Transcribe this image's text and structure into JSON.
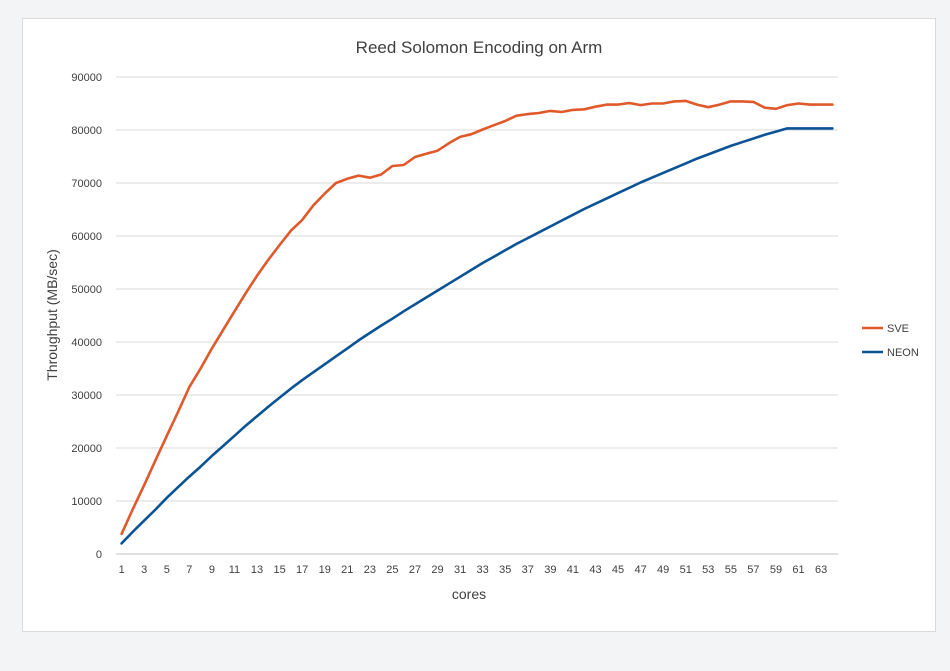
{
  "chart_data": {
    "type": "line",
    "title": "Reed Solomon Encoding on Arm",
    "xlabel": "cores",
    "ylabel": "Throughput (MB/sec)",
    "ylim": [
      0,
      90000
    ],
    "yticks": [
      "0",
      "10000",
      "20000",
      "30000",
      "40000",
      "50000",
      "60000",
      "70000",
      "80000",
      "90000"
    ],
    "xticks": [
      "1",
      "3",
      "5",
      "7",
      "9",
      "11",
      "13",
      "15",
      "17",
      "19",
      "21",
      "23",
      "25",
      "27",
      "29",
      "31",
      "33",
      "35",
      "37",
      "39",
      "41",
      "43",
      "45",
      "47",
      "49",
      "51",
      "53",
      "55",
      "57",
      "59",
      "61",
      "63"
    ],
    "grid": "horizontal",
    "legend_position": "right",
    "x": [
      1,
      2,
      3,
      4,
      5,
      6,
      7,
      8,
      9,
      10,
      11,
      12,
      13,
      14,
      15,
      16,
      17,
      18,
      19,
      20,
      21,
      22,
      23,
      24,
      25,
      26,
      27,
      28,
      29,
      30,
      31,
      32,
      33,
      34,
      35,
      36,
      37,
      38,
      39,
      40,
      41,
      42,
      43,
      44,
      45,
      46,
      47,
      48,
      49,
      50,
      51,
      52,
      53,
      54,
      55,
      56,
      57,
      58,
      59,
      60,
      61,
      62,
      63,
      64
    ],
    "series": [
      {
        "name": "SVE",
        "color": "#e0592a",
        "values": [
          3800,
          8500,
          13000,
          17700,
          22300,
          26800,
          31500,
          35000,
          38800,
          42300,
          45800,
          49200,
          52500,
          55500,
          58300,
          61000,
          63000,
          65800,
          68000,
          70000,
          70800,
          71400,
          71000,
          71600,
          73200,
          73400,
          74900,
          75500,
          76100,
          77500,
          78700,
          79200,
          80100,
          80900,
          81700,
          82700,
          83000,
          83200,
          83600,
          83400,
          83800,
          83900,
          84400,
          84800,
          84800,
          85100,
          84700,
          85000,
          85000,
          85400,
          85500,
          84800,
          84300,
          84800,
          85400,
          85400,
          85300,
          84200,
          84000,
          84700,
          85000,
          84800,
          84800,
          84800
        ]
      },
      {
        "name": "NEON",
        "color": "#0b5394",
        "values": [
          2000,
          4200,
          6300,
          8400,
          10600,
          12600,
          14600,
          16500,
          18500,
          20400,
          22300,
          24200,
          26000,
          27800,
          29500,
          31200,
          32800,
          34300,
          35800,
          37300,
          38800,
          40300,
          41700,
          43100,
          44400,
          45800,
          47100,
          48400,
          49700,
          51000,
          52300,
          53600,
          54900,
          56100,
          57300,
          58500,
          59600,
          60700,
          61800,
          62900,
          64000,
          65100,
          66100,
          67100,
          68100,
          69100,
          70100,
          71000,
          71900,
          72800,
          73700,
          74600,
          75400,
          76200,
          77000,
          77700,
          78400,
          79100,
          79700,
          80300,
          80300,
          80300,
          80300,
          80300
        ]
      }
    ]
  }
}
